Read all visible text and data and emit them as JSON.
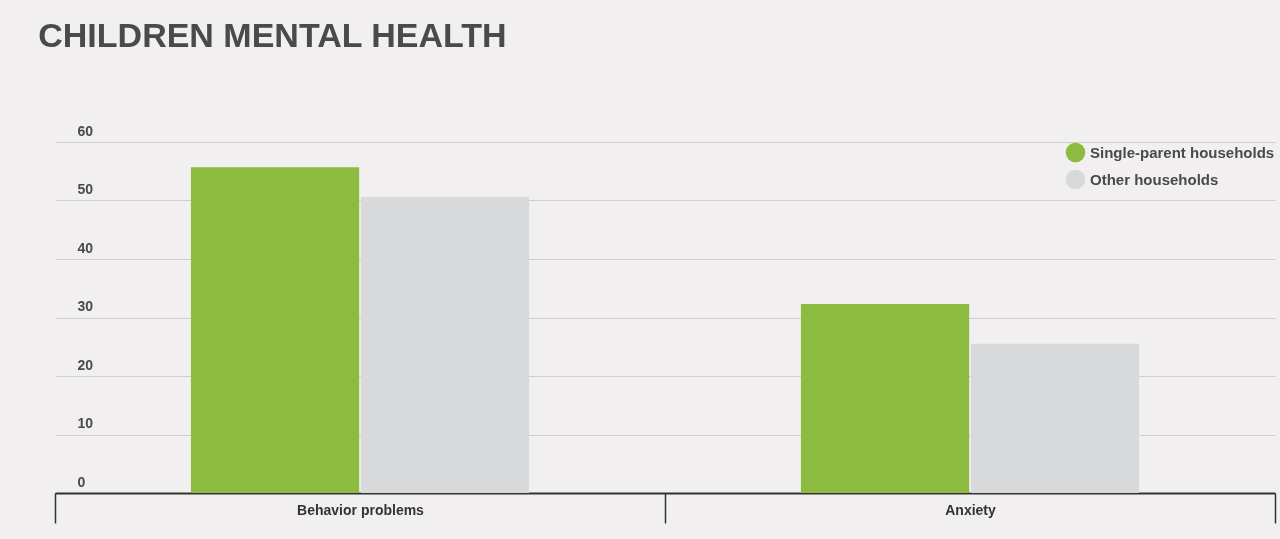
{
  "chart_data": {
    "type": "bar",
    "title": "CHILDREN MENTAL HEALTH",
    "categories": [
      "Behavior problems",
      "Anxiety"
    ],
    "series": [
      {
        "name": "Single-parent households",
        "color": "#8cbb3f",
        "values": [
          55.7,
          32.3
        ]
      },
      {
        "name": "Other households",
        "color": "#d8d9db",
        "values": [
          50.6,
          25.5
        ]
      }
    ],
    "ylim": [
      0,
      60
    ],
    "yticks": [
      0,
      10,
      20,
      30,
      40,
      50,
      60
    ],
    "grid": "y",
    "legend": "top right"
  }
}
